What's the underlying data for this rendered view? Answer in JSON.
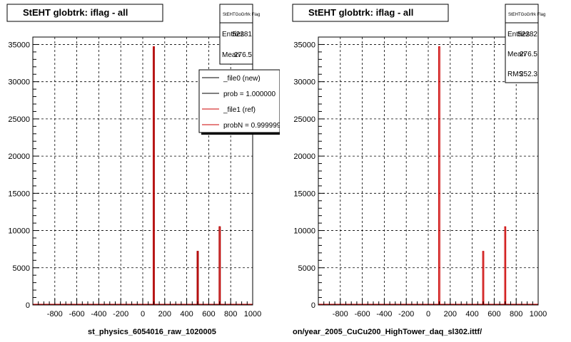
{
  "chart_data": [
    {
      "type": "bar",
      "title": "StEHT globtrk: iflag - all",
      "xlabel": "st_physics_6054016_raw_1020005",
      "ylabel": "",
      "xlim": [
        -1000,
        1000
      ],
      "ylim": [
        0,
        36000
      ],
      "grid": true,
      "x_ticks": [
        -800,
        -600,
        -400,
        -200,
        0,
        200,
        400,
        600,
        800,
        1000
      ],
      "y_ticks": [
        0,
        5000,
        10000,
        15000,
        20000,
        25000,
        30000,
        35000
      ],
      "series": [
        {
          "name": "_file0 (new)",
          "color": "#000000",
          "x": [
            100,
            500,
            700
          ],
          "values": [
            34700,
            7200,
            10500
          ]
        },
        {
          "name": "_file1 (ref)",
          "color": "#cc0000",
          "x": [
            100,
            500,
            700
          ],
          "values": [
            34700,
            7200,
            10500
          ]
        }
      ],
      "stats": {
        "name": "StEHTGoGrfrk Flag",
        "rows": [
          {
            "label": "Entries",
            "value": "52281"
          },
          {
            "label": "Mean",
            "value": "276.5"
          }
        ]
      },
      "legend": {
        "placement": "top-right",
        "entries": [
          {
            "text": "_file0 (new)",
            "color": "#000000"
          },
          {
            "text": "prob = 1.000000",
            "color": "#000000"
          },
          {
            "text": "_file1 (ref)",
            "color": "#cc0000"
          },
          {
            "text": "probN = 0.999999",
            "color": "#cc0000"
          }
        ]
      }
    },
    {
      "type": "bar",
      "title": "StEHT globtrk: iflag - all",
      "xlabel": "on/year_2005_CuCu200_HighTower_daq_sl302.ittf/",
      "ylabel": "",
      "xlim": [
        -1000,
        1000
      ],
      "ylim": [
        0,
        36000
      ],
      "grid": true,
      "x_ticks": [
        -800,
        -600,
        -400,
        -200,
        0,
        200,
        400,
        600,
        800,
        1000
      ],
      "y_ticks": [
        0,
        5000,
        10000,
        15000,
        20000,
        25000,
        30000,
        35000
      ],
      "series": [
        {
          "name": "",
          "color": "#cc0000",
          "x": [
            100,
            500,
            700
          ],
          "values": [
            34700,
            7200,
            10500
          ]
        }
      ],
      "stats": {
        "name": "StEHTGoGrfrk Flag",
        "rows": [
          {
            "label": "Entries",
            "value": "52282"
          },
          {
            "label": "Mean",
            "value": "276.5"
          },
          {
            "label": "RMS",
            "value": "252.3"
          }
        ]
      }
    }
  ]
}
